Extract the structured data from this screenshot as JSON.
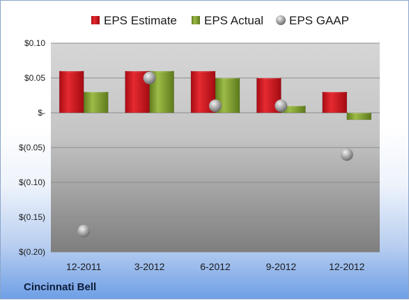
{
  "chart_data": {
    "type": "bar",
    "categories": [
      "12-2011",
      "3-2012",
      "6-2012",
      "9-2012",
      "12-2012"
    ],
    "series": [
      {
        "name": "EPS Estimate",
        "values": [
          0.06,
          0.06,
          0.06,
          0.05,
          0.03
        ],
        "color": "#c8141e",
        "mark": "bar"
      },
      {
        "name": "EPS Actual",
        "values": [
          0.03,
          0.06,
          0.05,
          0.01,
          -0.01
        ],
        "color": "#7d9c2e",
        "mark": "bar"
      },
      {
        "name": "EPS GAAP",
        "values": [
          -0.17,
          0.05,
          0.01,
          0.01,
          -0.06
        ],
        "color": "#a9a9a9",
        "mark": "circle"
      }
    ],
    "ylim": [
      -0.2,
      0.1
    ],
    "yticks": [
      0.1,
      0.05,
      0,
      -0.05,
      -0.1,
      -0.15,
      -0.2
    ],
    "ytick_labels": [
      "$0.10",
      "$0.05",
      "$-",
      "$(0.05)",
      "$(0.10)",
      "$(0.15)",
      "$(0.20)"
    ],
    "grid": true,
    "legend_position": "top",
    "company": "Cincinnati Bell"
  }
}
